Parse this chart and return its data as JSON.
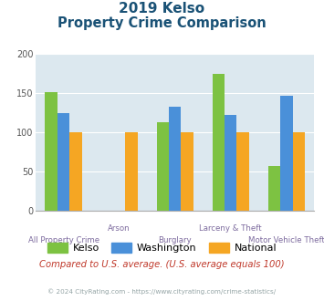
{
  "title_line1": "2019 Kelso",
  "title_line2": "Property Crime Comparison",
  "categories": [
    "All Property Crime",
    "Arson",
    "Burglary",
    "Larceny & Theft",
    "Motor Vehicle Theft"
  ],
  "series": {
    "Kelso": [
      152,
      null,
      113,
      175,
      57
    ],
    "Washington": [
      125,
      null,
      133,
      122,
      147
    ],
    "National": [
      100,
      100,
      100,
      100,
      100
    ]
  },
  "colors": {
    "Kelso": "#7dc242",
    "Washington": "#4a90d9",
    "National": "#f5a623"
  },
  "ylim": [
    0,
    200
  ],
  "yticks": [
    0,
    50,
    100,
    150,
    200
  ],
  "background_color": "#dce8ef",
  "title_color": "#1a5276",
  "xlabel_color": "#7d6b9e",
  "note_text": "Compared to U.S. average. (U.S. average equals 100)",
  "footer_text": "© 2024 CityRating.com - https://www.cityrating.com/crime-statistics/",
  "note_color": "#c0392b",
  "footer_color": "#95a5a6"
}
